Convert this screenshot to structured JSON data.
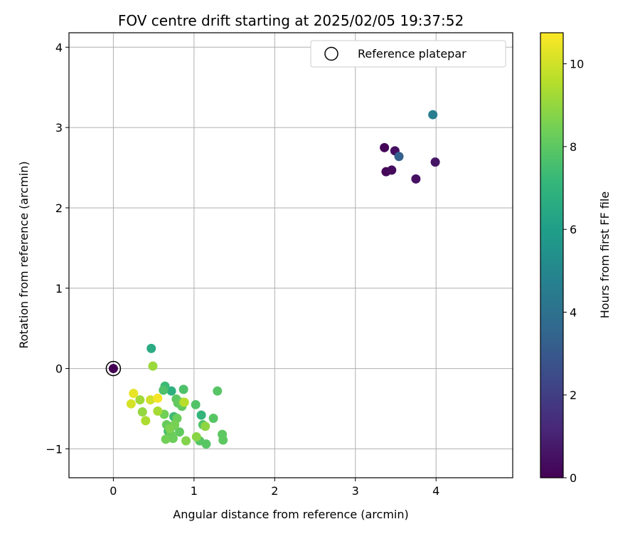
{
  "chart_data": {
    "type": "scatter",
    "title": "FOV centre drift starting at 2025/02/05 19:37:52",
    "xlabel": "Angular distance from reference (arcmin)",
    "ylabel": "Rotation from reference (arcmin)",
    "xlim": [
      -0.55,
      4.95
    ],
    "ylim": [
      -1.36,
      4.18
    ],
    "xticks": [
      0,
      1,
      2,
      3,
      4
    ],
    "yticks": [
      -1,
      0,
      1,
      2,
      3,
      4
    ],
    "grid": true,
    "legend": {
      "placement": "top-right",
      "entries": [
        "Reference platepar"
      ]
    },
    "reference_point": {
      "x": 0,
      "y": 0,
      "marker": "open-circle",
      "color": "#000000"
    },
    "colorbar": {
      "label": "Hours from first FF file",
      "min": 0,
      "max": 10.75,
      "ticks": [
        0,
        2,
        4,
        6,
        8,
        10
      ],
      "colormap": "viridis",
      "stops": [
        "#440154",
        "#482878",
        "#3e4989",
        "#31688e",
        "#26828e",
        "#1f9e89",
        "#35b779",
        "#6ece58",
        "#b5de2b",
        "#fde725"
      ]
    },
    "series": [
      {
        "x": [
          0,
          3.36,
          3.38,
          3.45,
          3.49,
          3.75,
          3.99,
          3.54,
          3.96,
          0.47,
          0.72,
          1.09,
          0.64,
          0.75,
          0.68,
          0.73,
          0.62,
          0.87,
          1.02,
          1.11,
          1.07,
          1.15,
          1.24,
          1.29,
          1.35,
          1.36,
          0.78,
          0.8,
          0.82,
          0.85,
          0.66,
          0.71,
          0.74,
          0.79,
          0.63,
          0.65,
          0.76,
          0.86,
          0.7,
          0.9,
          1.03,
          1.14,
          0.36,
          0.49,
          0.33,
          0.55,
          0.4,
          0.88,
          0.46,
          0.22,
          0.25,
          0.55
        ],
        "y": [
          0,
          2.75,
          2.45,
          2.47,
          2.71,
          2.36,
          2.57,
          2.64,
          3.16,
          0.25,
          -0.28,
          -0.58,
          -0.22,
          -0.6,
          -0.78,
          -0.72,
          -0.27,
          -0.26,
          -0.45,
          -0.7,
          -0.9,
          -0.94,
          -0.62,
          -0.28,
          -0.82,
          -0.89,
          -0.38,
          -0.43,
          -0.79,
          -0.47,
          -0.7,
          -0.82,
          -0.87,
          -0.62,
          -0.57,
          -0.88,
          -0.7,
          -0.42,
          -0.75,
          -0.9,
          -0.85,
          -0.72,
          -0.54,
          0.03,
          -0.39,
          -0.53,
          -0.65,
          -0.42,
          -0.39,
          -0.44,
          -0.31,
          -0.37
        ],
        "hours": [
          0,
          0.1,
          0.2,
          0.3,
          0.4,
          0.5,
          0.6,
          3.3,
          4.6,
          6.6,
          6.8,
          7.0,
          7.3,
          7.4,
          7.5,
          7.6,
          7.7,
          7.7,
          7.8,
          7.8,
          7.9,
          7.9,
          7.9,
          7.9,
          8.0,
          8.0,
          8.0,
          8.1,
          8.1,
          8.1,
          8.2,
          8.2,
          8.3,
          8.3,
          8.4,
          8.4,
          8.5,
          8.5,
          8.6,
          8.7,
          8.8,
          8.9,
          9.0,
          9.1,
          9.2,
          9.3,
          9.4,
          9.6,
          10.0,
          10.1,
          10.4,
          10.6
        ]
      }
    ]
  }
}
